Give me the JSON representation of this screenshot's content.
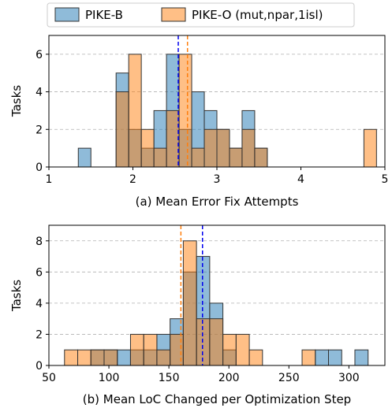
{
  "legend": {
    "placement": "top-center",
    "entries": [
      {
        "label": "PIKE-B",
        "color": "#1f77b4"
      },
      {
        "label": "PIKE-O (mut,npar,1isl)",
        "color": "#ff7f0e"
      }
    ]
  },
  "chart_data": [
    {
      "type": "histogram",
      "xlabel": "(a) Mean Error Fix Attempts",
      "ylabel": "Tasks",
      "xlim": [
        1,
        5
      ],
      "ylim": [
        0,
        7
      ],
      "xticks": [
        1,
        2,
        3,
        4,
        5
      ],
      "yticks": [
        0,
        2,
        4,
        6
      ],
      "grid": "horizontal dashed",
      "bins": [
        {
          "x0": 1.35,
          "x1": 1.5,
          "b": 1,
          "o": 0
        },
        {
          "x0": 1.5,
          "x1": 1.65,
          "b": 0,
          "o": 0
        },
        {
          "x0": 1.65,
          "x1": 1.8,
          "b": 0,
          "o": 0
        },
        {
          "x0": 1.8,
          "x1": 1.95,
          "b": 5,
          "o": 4
        },
        {
          "x0": 1.95,
          "x1": 2.1,
          "b": 2,
          "o": 6
        },
        {
          "x0": 2.1,
          "x1": 2.25,
          "b": 1,
          "o": 2
        },
        {
          "x0": 2.25,
          "x1": 2.4,
          "b": 3,
          "o": 1
        },
        {
          "x0": 2.4,
          "x1": 2.55,
          "b": 6,
          "o": 3
        },
        {
          "x0": 2.55,
          "x1": 2.7,
          "b": 2,
          "o": 6
        },
        {
          "x0": 2.7,
          "x1": 2.85,
          "b": 4,
          "o": 1
        },
        {
          "x0": 2.85,
          "x1": 3.0,
          "b": 3,
          "o": 2
        },
        {
          "x0": 3.0,
          "x1": 3.15,
          "b": 2,
          "o": 2
        },
        {
          "x0": 3.15,
          "x1": 3.3,
          "b": 1,
          "o": 1
        },
        {
          "x0": 3.3,
          "x1": 3.45,
          "b": 3,
          "o": 2
        },
        {
          "x0": 3.45,
          "x1": 3.6,
          "b": 1,
          "o": 1
        },
        {
          "x0": 4.75,
          "x1": 4.9,
          "b": 0,
          "o": 2
        }
      ],
      "means": {
        "PIKE-B": 2.54,
        "PIKE-O (mut,npar,1isl)": 2.65
      }
    },
    {
      "type": "histogram",
      "xlabel": "(b) Mean LoC Changed per Optimization Step",
      "ylabel": "Tasks",
      "xlim": [
        50,
        330
      ],
      "ylim": [
        0,
        9
      ],
      "xticks": [
        50,
        100,
        150,
        200,
        250,
        300
      ],
      "yticks": [
        0,
        2,
        4,
        6,
        8
      ],
      "grid": "horizontal dashed",
      "bins": [
        {
          "x0": 63,
          "x1": 74,
          "b": 0,
          "o": 1
        },
        {
          "x0": 74,
          "x1": 85,
          "b": 0,
          "o": 1
        },
        {
          "x0": 85,
          "x1": 96,
          "b": 1,
          "o": 1
        },
        {
          "x0": 96,
          "x1": 107,
          "b": 1,
          "o": 1
        },
        {
          "x0": 107,
          "x1": 118,
          "b": 1,
          "o": 0
        },
        {
          "x0": 118,
          "x1": 129,
          "b": 1,
          "o": 2
        },
        {
          "x0": 129,
          "x1": 140,
          "b": 1,
          "o": 2
        },
        {
          "x0": 140,
          "x1": 151,
          "b": 2,
          "o": 1
        },
        {
          "x0": 151,
          "x1": 162,
          "b": 3,
          "o": 2
        },
        {
          "x0": 162,
          "x1": 173,
          "b": 6,
          "o": 8
        },
        {
          "x0": 173,
          "x1": 184,
          "b": 7,
          "o": 3
        },
        {
          "x0": 184,
          "x1": 195,
          "b": 4,
          "o": 3
        },
        {
          "x0": 195,
          "x1": 206,
          "b": 1,
          "o": 2
        },
        {
          "x0": 206,
          "x1": 217,
          "b": 0,
          "o": 2
        },
        {
          "x0": 217,
          "x1": 228,
          "b": 0,
          "o": 1
        },
        {
          "x0": 228,
          "x1": 239,
          "b": 0,
          "o": 0
        },
        {
          "x0": 261,
          "x1": 272,
          "b": 0,
          "o": 1
        },
        {
          "x0": 272,
          "x1": 283,
          "b": 1,
          "o": 0
        },
        {
          "x0": 283,
          "x1": 294,
          "b": 1,
          "o": 0
        },
        {
          "x0": 294,
          "x1": 305,
          "b": 0,
          "o": 0
        },
        {
          "x0": 305,
          "x1": 316,
          "b": 1,
          "o": 0
        }
      ],
      "means": {
        "PIKE-B": 178,
        "PIKE-O (mut,npar,1isl)": 160
      }
    }
  ]
}
